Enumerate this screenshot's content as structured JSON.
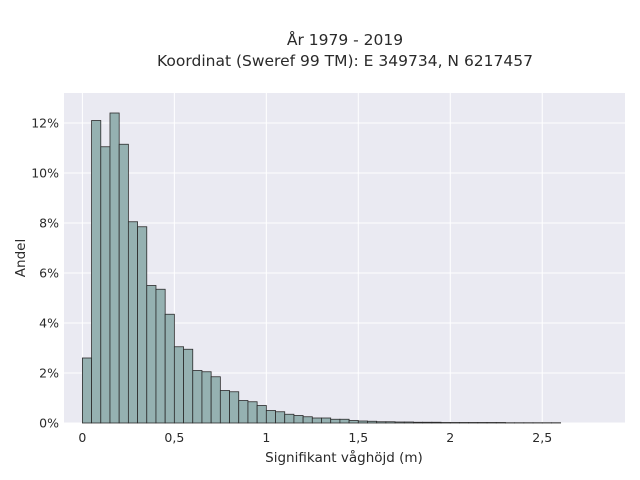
{
  "chart_data": {
    "type": "bar",
    "title": "År 1979 - 2019",
    "subtitle": "Koordinat (Sweref 99 TM): E 349734, N 6217457",
    "xlabel": "Signifikant våghöjd (m)",
    "ylabel": "Andel",
    "xlim": [
      -0.1,
      2.95
    ],
    "ylim": [
      0,
      13.2
    ],
    "x_ticks": [
      0,
      0.5,
      1,
      1.5,
      2,
      2.5
    ],
    "x_tick_labels": [
      "0",
      "0,5",
      "1",
      "1,5",
      "2",
      "2,5"
    ],
    "y_ticks": [
      0,
      2,
      4,
      6,
      8,
      10,
      12
    ],
    "y_tick_labels": [
      "0%",
      "2%",
      "4%",
      "6%",
      "8%",
      "10%",
      "12%"
    ],
    "bin_width": 0.05,
    "bin_start": 0.0,
    "bar_color": "#95b1b1",
    "edge_color": "#2b2b2b",
    "plot_background": "#eaeaf2",
    "grid": true,
    "values": [
      2.6,
      12.1,
      11.05,
      12.4,
      11.15,
      8.05,
      7.85,
      5.5,
      5.35,
      4.35,
      3.05,
      2.95,
      2.1,
      2.05,
      1.85,
      1.3,
      1.25,
      0.9,
      0.85,
      0.7,
      0.5,
      0.45,
      0.35,
      0.3,
      0.25,
      0.2,
      0.2,
      0.15,
      0.15,
      0.1,
      0.08,
      0.07,
      0.05,
      0.05,
      0.04,
      0.04,
      0.03,
      0.03,
      0.03,
      0.02,
      0.02,
      0.02,
      0.02,
      0.02,
      0.02,
      0.02,
      0.01,
      0.01,
      0.01,
      0.01,
      0.01,
      0.01
    ]
  }
}
